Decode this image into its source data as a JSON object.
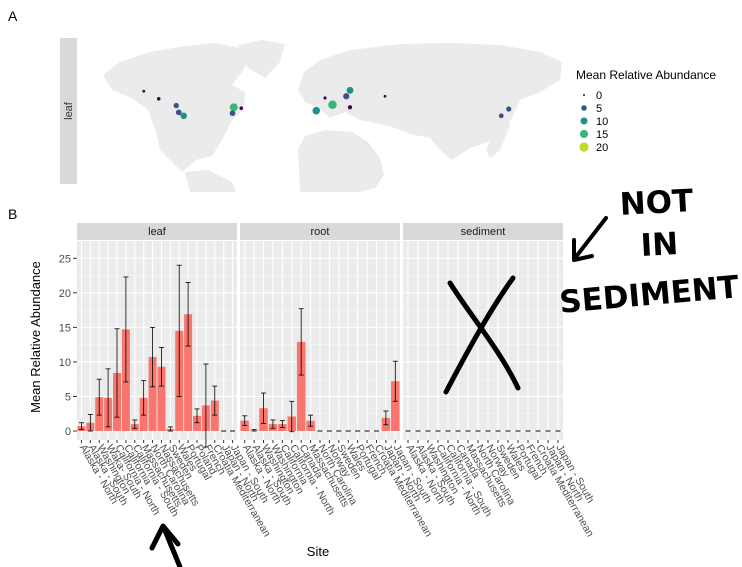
{
  "chart_data": [
    {
      "type": "scatter",
      "panel_label": "A",
      "facet_label": "leaf",
      "legend": {
        "title": "Mean Relative Abundance",
        "placement": "right",
        "entries": [
          {
            "label": "0",
            "color": "#440154"
          },
          {
            "label": "5",
            "color": "#3b528b"
          },
          {
            "label": "10",
            "color": "#21908d"
          },
          {
            "label": "15",
            "color": "#35b779"
          },
          {
            "label": "20",
            "color": "#bddf26"
          }
        ]
      },
      "points": [
        {
          "lon": -149,
          "lat": 61,
          "value": 0.3
        },
        {
          "lon": -137,
          "lat": 52,
          "value": 1.0
        },
        {
          "lon": -123,
          "lat": 44,
          "value": 4.5
        },
        {
          "lon": -121,
          "lat": 36,
          "value": 5.5
        },
        {
          "lon": -117,
          "lat": 32,
          "value": 8.0
        },
        {
          "lon": -77,
          "lat": 42,
          "value": 13.5
        },
        {
          "lon": -71,
          "lat": 41,
          "value": 1.0
        },
        {
          "lon": -78,
          "lat": 35,
          "value": 5.0
        },
        {
          "lon": 16,
          "lat": 62,
          "value": 9.5
        },
        {
          "lon": 13,
          "lat": 55,
          "value": 7.0
        },
        {
          "lon": -4,
          "lat": 53,
          "value": 0.5
        },
        {
          "lon": 44,
          "lat": 55,
          "value": 0.2
        },
        {
          "lon": 2,
          "lat": 45,
          "value": 16.5
        },
        {
          "lon": 16,
          "lat": 42,
          "value": 2.0
        },
        {
          "lon": -11,
          "lat": 38,
          "value": 12.0
        },
        {
          "lon": 143,
          "lat": 40,
          "value": 4.0
        },
        {
          "lon": 137,
          "lat": 32,
          "value": 3.0
        }
      ]
    },
    {
      "type": "bar",
      "panel_label": "B",
      "xlabel": "Site",
      "ylabel": "Mean Relative Abundance",
      "ylim": [
        -1.3,
        27.5
      ],
      "yticks": [
        0,
        5,
        10,
        15,
        20,
        25
      ],
      "grid": true,
      "bar_color": "#f8766d",
      "facets": [
        {
          "name": "leaf",
          "categories": [
            "Alaska - North",
            "Alaska - South",
            "Washington",
            "Waka- South",
            "California - North",
            "California",
            "California - South",
            "Massachusetts",
            "North Carolina",
            "Nassachusetts",
            "Sweden",
            "Wales",
            "Portugal",
            "Poland",
            "French",
            "Croatia Mediterranean",
            "Japan - North",
            "Japan - South"
          ],
          "values": [
            0.7,
            1.2,
            4.9,
            4.8,
            8.4,
            14.7,
            1.0,
            4.8,
            10.7,
            9.3,
            0.3,
            14.5,
            16.9,
            2.2,
            3.7,
            4.4,
            0.0,
            0.0
          ],
          "errors": [
            0.5,
            1.2,
            2.6,
            4.2,
            6.4,
            7.6,
            0.6,
            2.5,
            4.3,
            2.8,
            0.3,
            9.5,
            4.6,
            1.0,
            6.0,
            2.1,
            0.0,
            0.0
          ]
        },
        {
          "name": "root",
          "categories": [
            "Alaska - North",
            "Alaska - South",
            "Washington",
            "Washington",
            "California",
            "California - North",
            "Canada",
            "Massachusetts",
            "North Carolina",
            "Norway",
            "Sweden",
            "Wales",
            "Portugal",
            "French",
            "Croatia Mediterranean",
            "Japan - North",
            "Japan - South"
          ],
          "values": [
            1.5,
            0.1,
            3.3,
            1.0,
            1.0,
            2.1,
            12.9,
            1.5,
            0.0,
            0.0,
            0.0,
            0.0,
            0.0,
            0.0,
            0.0,
            1.9,
            7.2
          ],
          "errors": [
            0.7,
            0.1,
            2.2,
            0.6,
            0.5,
            2.2,
            4.8,
            0.8,
            0.0,
            0.0,
            0.0,
            0.0,
            0.0,
            0.0,
            0.0,
            1.0,
            2.9
          ]
        },
        {
          "name": "sediment",
          "categories": [
            "Alaska - North",
            "Alaska - South",
            "Washington",
            "California - North",
            "California - South",
            "Canada",
            "Massachusetts",
            "North Carolina",
            "Norway",
            "Sweden",
            "Wales",
            "Portugal",
            "French",
            "Croatia Mediterranean",
            "Japan - North",
            "Japan - South"
          ],
          "values": [
            0,
            0,
            0,
            0,
            0,
            0,
            0,
            0,
            0,
            0,
            0,
            0,
            0,
            0,
            0,
            0
          ],
          "errors": [
            0,
            0,
            0,
            0,
            0,
            0,
            0,
            0,
            0,
            0,
            0,
            0,
            0,
            0,
            0,
            0
          ]
        }
      ]
    }
  ],
  "annotation": {
    "handwritten_lines": [
      "NOT",
      "IN",
      "SEDIMENT"
    ]
  }
}
